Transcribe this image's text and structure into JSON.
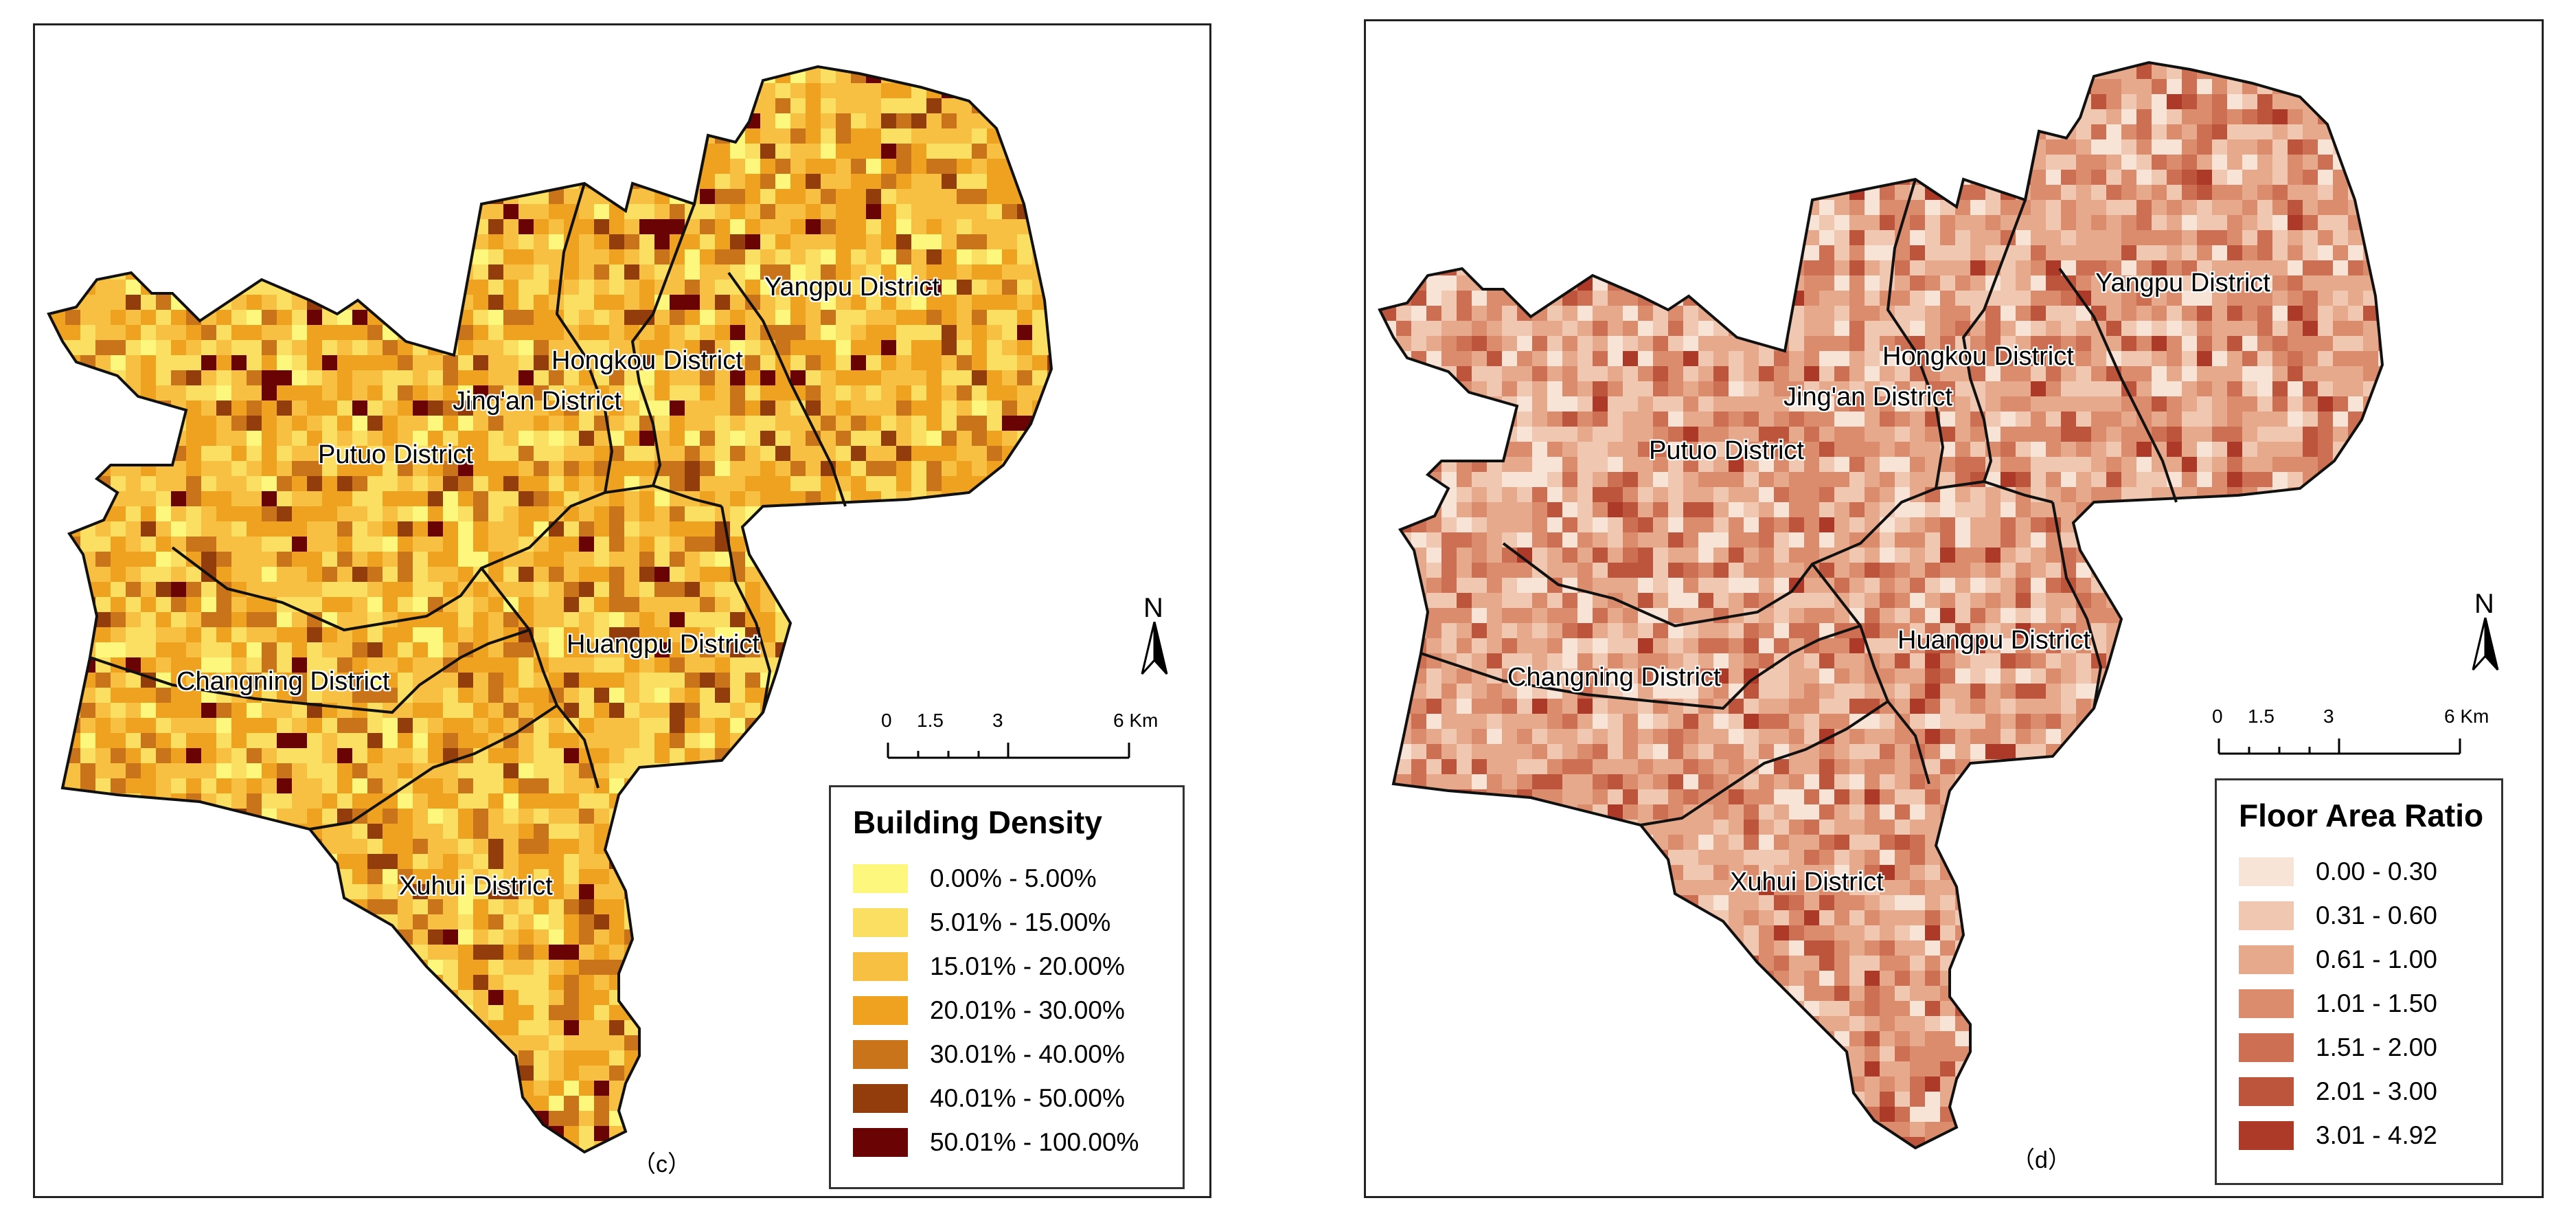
{
  "maps": [
    {
      "id": "c",
      "panel_label": "（c）",
      "legend_title": "Building Density",
      "classes": [
        {
          "label": "0.00% - 5.00%",
          "color": "#fdf77d"
        },
        {
          "label": "5.01% - 15.00%",
          "color": "#fbdf62"
        },
        {
          "label": "15.01% - 20.00%",
          "color": "#f7c043"
        },
        {
          "label": "20.01% - 30.00%",
          "color": "#efa21f"
        },
        {
          "label": "30.01% - 40.00%",
          "color": "#c9741a"
        },
        {
          "label": "40.01% - 50.00%",
          "color": "#933c0c"
        },
        {
          "label": "50.01% - 100.00%",
          "color": "#6a0404"
        }
      ],
      "weights": [
        6,
        20,
        28,
        26,
        12,
        5,
        3
      ]
    },
    {
      "id": "d",
      "panel_label": "（d）",
      "legend_title": "Floor Area Ratio",
      "classes": [
        {
          "label": "0.00 - 0.30",
          "color": "#f8e4d6"
        },
        {
          "label": "0.31 - 0.60",
          "color": "#f0c7b0"
        },
        {
          "label": "0.61 - 1.00",
          "color": "#e6a98c"
        },
        {
          "label": "1.01 - 1.50",
          "color": "#da8c6d"
        },
        {
          "label": "1.51 - 2.00",
          "color": "#cc6f52"
        },
        {
          "label": "2.01 - 3.00",
          "color": "#bd553c"
        },
        {
          "label": "3.01 - 4.92",
          "color": "#ad3a28"
        }
      ],
      "weights": [
        12,
        22,
        26,
        20,
        11,
        6,
        3
      ]
    }
  ],
  "districts": [
    "Yangpu District",
    "Hongkou District",
    "Jing'an District",
    "Putuo District",
    "Changning District",
    "Huangpu District",
    "Xuhui District"
  ],
  "scale": {
    "ticks": [
      "0",
      "1.5",
      "3",
      "6 Km"
    ]
  },
  "north_label": "N"
}
